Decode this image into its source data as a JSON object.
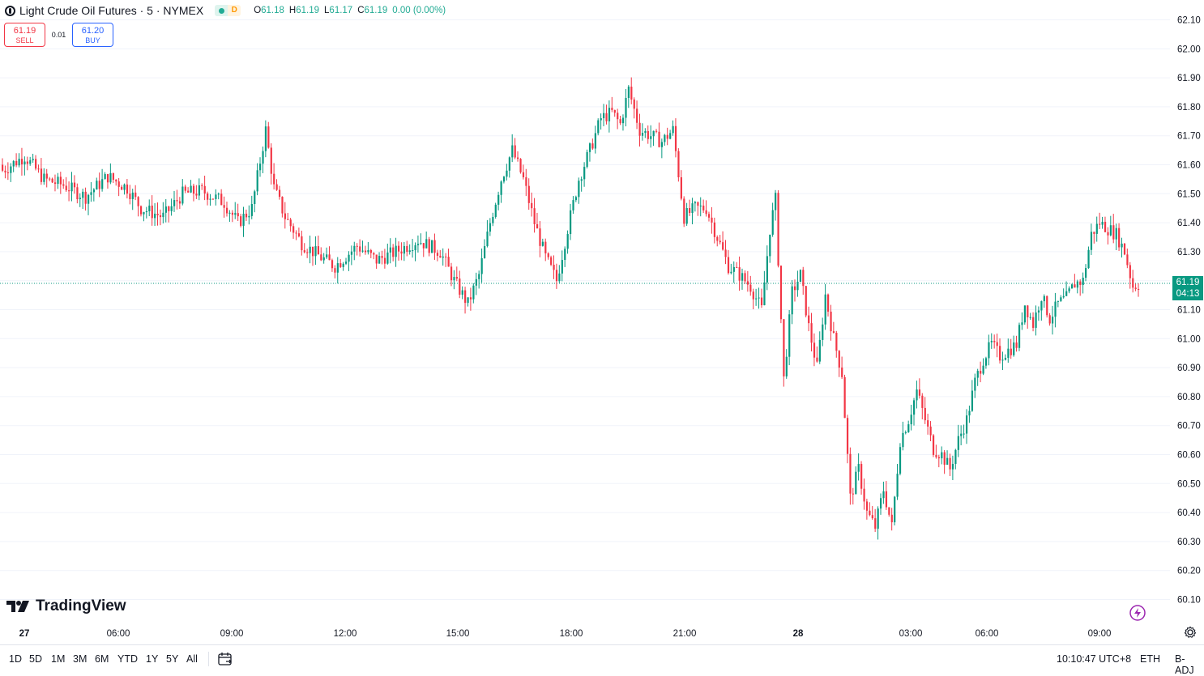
{
  "legend": {
    "title": "Light Crude Oil Futures · 5 · NYMEX",
    "market_status": "D",
    "ohlc": [
      {
        "k": "O",
        "v": "61.18"
      },
      {
        "k": "H",
        "v": "61.19"
      },
      {
        "k": "L",
        "v": "61.17"
      },
      {
        "k": "C",
        "v": "61.19"
      }
    ],
    "change": "0.00 (0.00%)"
  },
  "trade": {
    "sell_price": "61.19",
    "sell_label": "SELL",
    "spread": "0.01",
    "buy_price": "61.20",
    "buy_label": "BUY"
  },
  "logo_text": "TradingView",
  "last_price": {
    "price": "61.19",
    "countdown": "04:13"
  },
  "range_buttons": [
    "1D",
    "5D",
    "1M",
    "3M",
    "6M",
    "YTD",
    "1Y",
    "5Y",
    "All"
  ],
  "status_bar": {
    "clock": "10:10:47 UTC+8",
    "session": "ETH",
    "adjustment": "B-ADJ"
  },
  "icons": [
    "tradingview-logo-icon",
    "flash-icon",
    "gear-icon",
    "calendar-icon",
    "market-open-icon"
  ],
  "colors": {
    "up": "#089981",
    "down": "#f23645",
    "sell": "#f23645",
    "buy": "#2962ff",
    "grid": "#f0f3fa"
  },
  "chart_data": {
    "type": "candlestick",
    "interval": "5",
    "price_scale_labels": [
      "62.10",
      "62.00",
      "61.90",
      "61.80",
      "61.70",
      "61.60",
      "61.50",
      "61.40",
      "61.30",
      "61.20",
      "61.10",
      "61.00",
      "60.90",
      "60.80",
      "60.70",
      "60.60",
      "60.50",
      "60.40",
      "60.30",
      "60.20",
      "60.10"
    ],
    "time_axis_labels": [
      {
        "t": "27",
        "bold": true
      },
      {
        "t": "06:00"
      },
      {
        "t": "09:00"
      },
      {
        "t": "12:00"
      },
      {
        "t": "15:00"
      },
      {
        "t": "18:00"
      },
      {
        "t": "21:00"
      },
      {
        "t": "28",
        "bold": true
      },
      {
        "t": "03:00"
      },
      {
        "t": "06:00"
      },
      {
        "t": "09:00"
      }
    ],
    "ylim": [
      60.05,
      62.15
    ],
    "close_path": [
      [
        0,
        61.58
      ],
      [
        8,
        61.63
      ],
      [
        15,
        61.55
      ],
      [
        22,
        61.53
      ],
      [
        30,
        61.49
      ],
      [
        38,
        61.56
      ],
      [
        45,
        61.52
      ],
      [
        50,
        61.45
      ],
      [
        58,
        61.42
      ],
      [
        65,
        61.5
      ],
      [
        72,
        61.51
      ],
      [
        80,
        61.47
      ],
      [
        85,
        61.4
      ],
      [
        90,
        61.45
      ],
      [
        95,
        61.72
      ],
      [
        98,
        61.52
      ],
      [
        102,
        61.42
      ],
      [
        108,
        61.33
      ],
      [
        115,
        61.28
      ],
      [
        120,
        61.25
      ],
      [
        128,
        61.32
      ],
      [
        135,
        61.27
      ],
      [
        142,
        61.3
      ],
      [
        150,
        61.34
      ],
      [
        158,
        61.3
      ],
      [
        163,
        61.2
      ],
      [
        168,
        61.12
      ],
      [
        172,
        61.22
      ],
      [
        176,
        61.4
      ],
      [
        180,
        61.55
      ],
      [
        184,
        61.65
      ],
      [
        188,
        61.55
      ],
      [
        192,
        61.4
      ],
      [
        196,
        61.28
      ],
      [
        200,
        61.2
      ],
      [
        204,
        61.38
      ],
      [
        208,
        61.55
      ],
      [
        212,
        61.65
      ],
      [
        216,
        61.76
      ],
      [
        220,
        61.78
      ],
      [
        223,
        61.74
      ],
      [
        226,
        61.86
      ],
      [
        230,
        61.72
      ],
      [
        234,
        61.7
      ],
      [
        238,
        61.68
      ],
      [
        242,
        61.72
      ],
      [
        246,
        61.42
      ],
      [
        250,
        61.45
      ],
      [
        254,
        61.45
      ],
      [
        258,
        61.35
      ],
      [
        262,
        61.25
      ],
      [
        266,
        61.22
      ],
      [
        270,
        61.18
      ],
      [
        274,
        61.1
      ],
      [
        277,
        61.38
      ],
      [
        279,
        61.48
      ],
      [
        282,
        60.86
      ],
      [
        285,
        61.16
      ],
      [
        288,
        61.22
      ],
      [
        291,
        61.04
      ],
      [
        294,
        60.9
      ],
      [
        297,
        61.15
      ],
      [
        300,
        61.0
      ],
      [
        303,
        60.88
      ],
      [
        306,
        60.45
      ],
      [
        309,
        60.55
      ],
      [
        312,
        60.4
      ],
      [
        315,
        60.35
      ],
      [
        318,
        60.48
      ],
      [
        321,
        60.35
      ],
      [
        324,
        60.65
      ],
      [
        327,
        60.72
      ],
      [
        330,
        60.82
      ],
      [
        333,
        60.72
      ],
      [
        336,
        60.62
      ],
      [
        339,
        60.6
      ],
      [
        342,
        60.55
      ],
      [
        345,
        60.65
      ],
      [
        348,
        60.72
      ],
      [
        351,
        60.85
      ],
      [
        354,
        60.93
      ],
      [
        357,
        60.98
      ],
      [
        360,
        60.94
      ],
      [
        363,
        60.96
      ],
      [
        366,
        60.98
      ],
      [
        369,
        61.12
      ],
      [
        372,
        61.05
      ],
      [
        375,
        61.15
      ],
      [
        378,
        61.07
      ],
      [
        381,
        61.12
      ],
      [
        384,
        61.14
      ],
      [
        387,
        61.19
      ],
      [
        390,
        61.2
      ],
      [
        393,
        61.36
      ],
      [
        396,
        61.4
      ],
      [
        399,
        61.38
      ],
      [
        402,
        61.36
      ],
      [
        405,
        61.3
      ],
      [
        408,
        61.18
      ],
      [
        410,
        61.19
      ]
    ]
  }
}
